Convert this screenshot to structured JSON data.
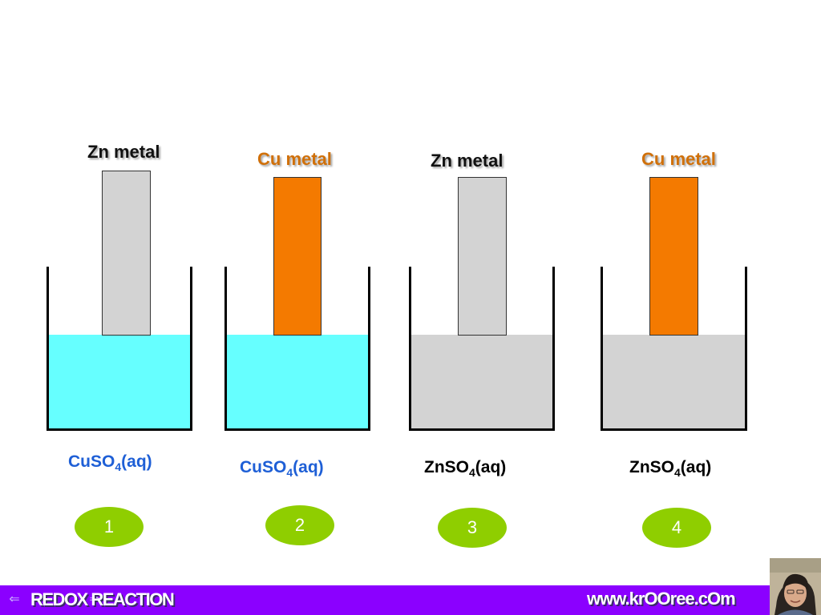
{
  "colors": {
    "zinc": "#d3d3d3",
    "copper": "#f47a00",
    "cuso4_solution": "#66ffff",
    "znso4_solution": "#d3d3d3",
    "cu_label": "#d0700a",
    "zn_label": "#111111",
    "cuso4_label": "#1e5fd6",
    "znso4_label": "#000000",
    "number_badge": "#8fce00",
    "footer": "#8b00ff"
  },
  "setups": [
    {
      "number": "1",
      "metal_label": "Zn  metal",
      "metal": "zinc",
      "solution": {
        "formula": "CuSO",
        "subscript": "4",
        "state": "(aq)"
      }
    },
    {
      "number": "2",
      "metal_label": "Cu  metal",
      "metal": "copper",
      "solution": {
        "formula": "CuSO",
        "subscript": "4",
        "state": "(aq)"
      }
    },
    {
      "number": "3",
      "metal_label": "Zn  metal",
      "metal": "zinc",
      "solution": {
        "formula": "ZnSO",
        "subscript": "4",
        "state": "(aq)"
      }
    },
    {
      "number": "4",
      "metal_label": "Cu  metal",
      "metal": "copper",
      "solution": {
        "formula": "ZnSO",
        "subscript": "4",
        "state": "(aq)"
      }
    }
  ],
  "footer": {
    "title": "REDOX  REACTION",
    "url": "www.krOOree.cOm",
    "prev_icon": "arrow-left-icon",
    "next_icon": "arrow-right-icon",
    "photo_icon": "presenter-photo"
  }
}
